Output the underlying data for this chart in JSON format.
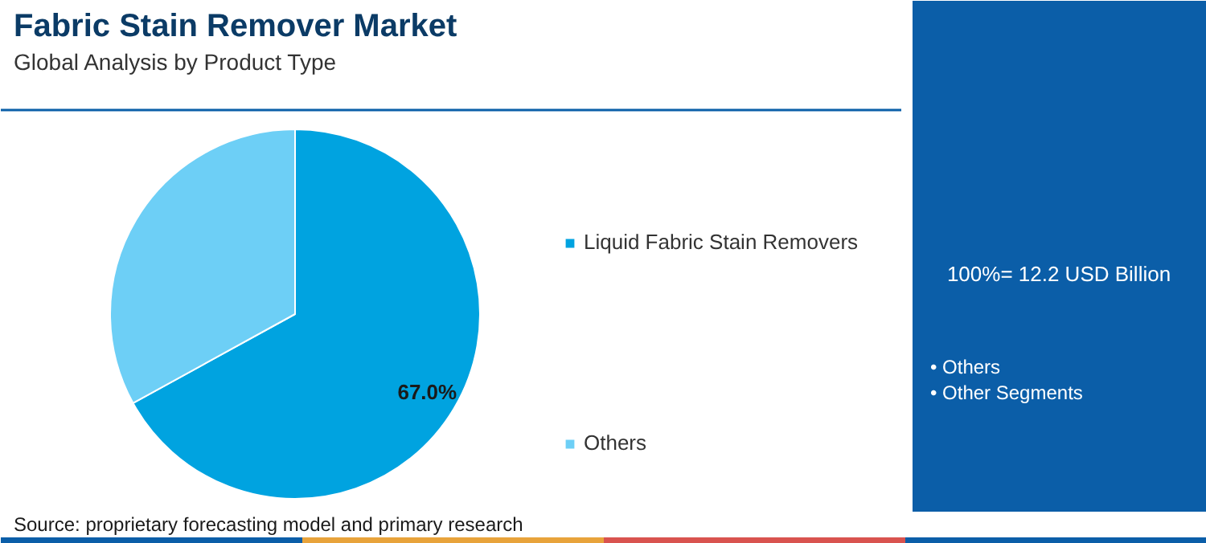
{
  "chart_data": {
    "type": "pie",
    "title": "Fabric Stain Remover Market",
    "subtitle": "Global Analysis by Product Type",
    "categories": [
      "Liquid Fabric Stain Removers",
      "Others"
    ],
    "values": [
      67.0,
      33.0
    ],
    "colors": [
      "#00a3e0",
      "#6dcff6"
    ],
    "value_labels": [
      "67.0%",
      null
    ],
    "legend": "right",
    "annotations": [
      "Source: proprietary forecasting model and primary research",
      "100%= 12.2 USD Billion",
      "• Others",
      "• Other Segments"
    ]
  }
}
